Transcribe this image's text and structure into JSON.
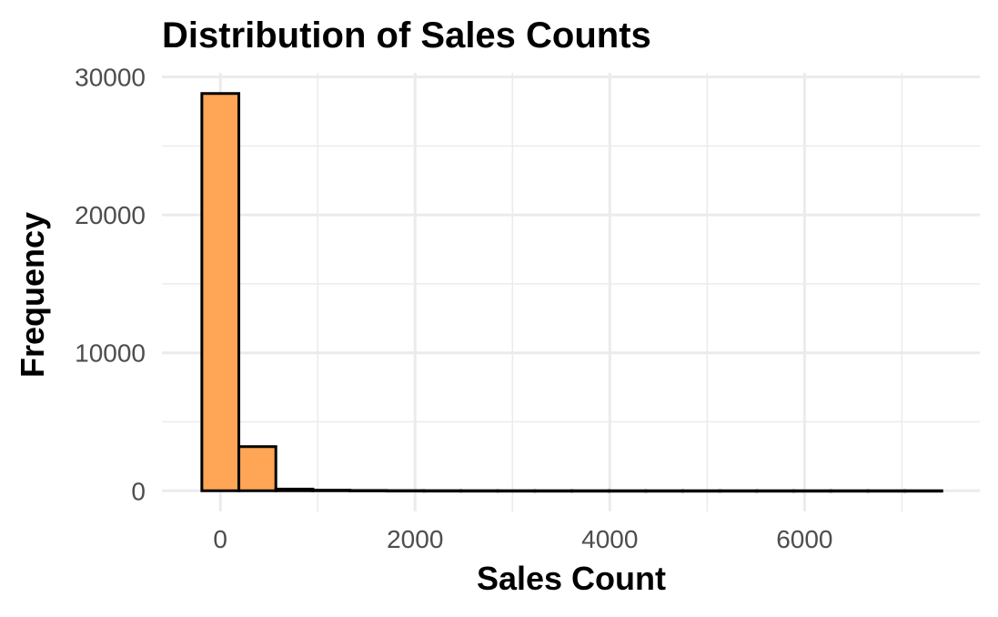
{
  "chart_data": {
    "type": "bar",
    "title": "Distribution of Sales Counts",
    "xlabel": "Sales Count",
    "ylabel": "Frequency",
    "xlim": [
      -600,
      7800
    ],
    "ylim": [
      -1500,
      30300
    ],
    "x_ticks": [
      0,
      2000,
      4000,
      6000
    ],
    "y_ticks": [
      0,
      10000,
      20000,
      30000
    ],
    "bin_width": 380,
    "bars": [
      {
        "x0": -190,
        "x1": 190,
        "value": 28800
      },
      {
        "x0": 190,
        "x1": 570,
        "value": 3200
      },
      {
        "x0": 570,
        "x1": 950,
        "value": 120
      },
      {
        "x0": 950,
        "x1": 1330,
        "value": 40
      },
      {
        "x0": 1330,
        "x1": 1710,
        "value": 20
      },
      {
        "x0": 1710,
        "x1": 2090,
        "value": 10
      },
      {
        "x0": 2090,
        "x1": 2470,
        "value": 6
      },
      {
        "x0": 2470,
        "x1": 2850,
        "value": 4
      },
      {
        "x0": 2850,
        "x1": 3230,
        "value": 3
      },
      {
        "x0": 3230,
        "x1": 3610,
        "value": 2
      },
      {
        "x0": 3610,
        "x1": 3990,
        "value": 2
      },
      {
        "x0": 3990,
        "x1": 4370,
        "value": 1
      },
      {
        "x0": 4370,
        "x1": 4750,
        "value": 1
      },
      {
        "x0": 4750,
        "x1": 5130,
        "value": 1
      },
      {
        "x0": 5130,
        "x1": 5510,
        "value": 1
      },
      {
        "x0": 5510,
        "x1": 5890,
        "value": 1
      },
      {
        "x0": 5890,
        "x1": 6270,
        "value": 1
      },
      {
        "x0": 6270,
        "x1": 6650,
        "value": 1
      },
      {
        "x0": 6650,
        "x1": 7030,
        "value": 1
      },
      {
        "x0": 7030,
        "x1": 7410,
        "value": 1
      }
    ],
    "grid": true,
    "legend": "none",
    "bar_fill": "#ffa556",
    "bar_outline": "#000000",
    "grid_color": "#ebebeb",
    "background": "#ffffff"
  }
}
